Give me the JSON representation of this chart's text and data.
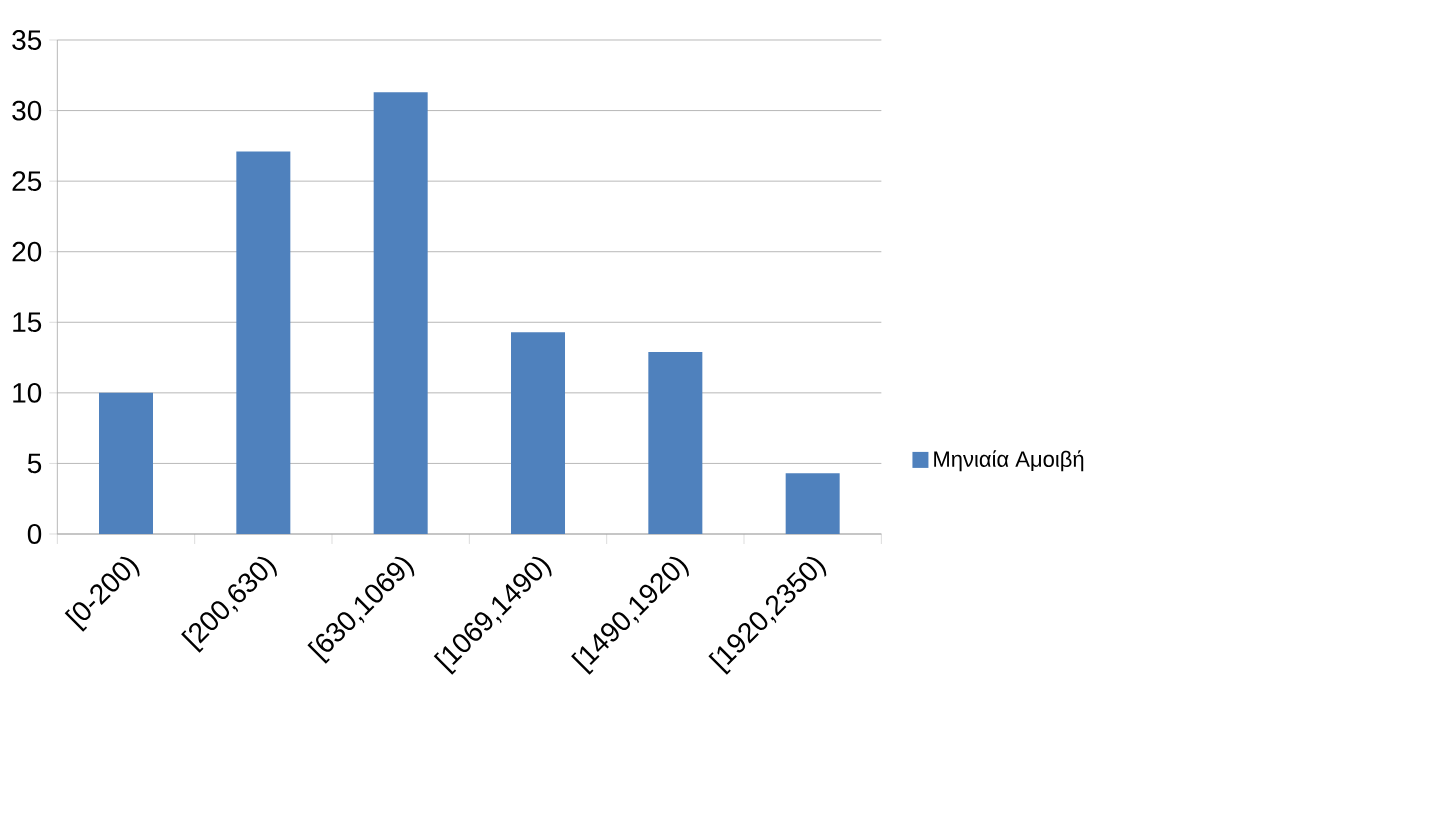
{
  "chart_data": {
    "type": "bar",
    "categories": [
      "[0-200)",
      "[200,630)",
      "[630,1069)",
      "[1069,1490)",
      "[1490,1920)",
      "[1920,2350)"
    ],
    "series": [
      {
        "name": "Μηνιαία Αμοιβή",
        "color": "#4f81bd",
        "values": [
          10,
          27.1,
          31.3,
          14.3,
          12.9,
          4.3
        ]
      }
    ],
    "ylim": [
      0,
      35
    ],
    "yticks": [
      0,
      5,
      10,
      15,
      20,
      25,
      30,
      35
    ],
    "grid": "y",
    "legend": "right"
  }
}
